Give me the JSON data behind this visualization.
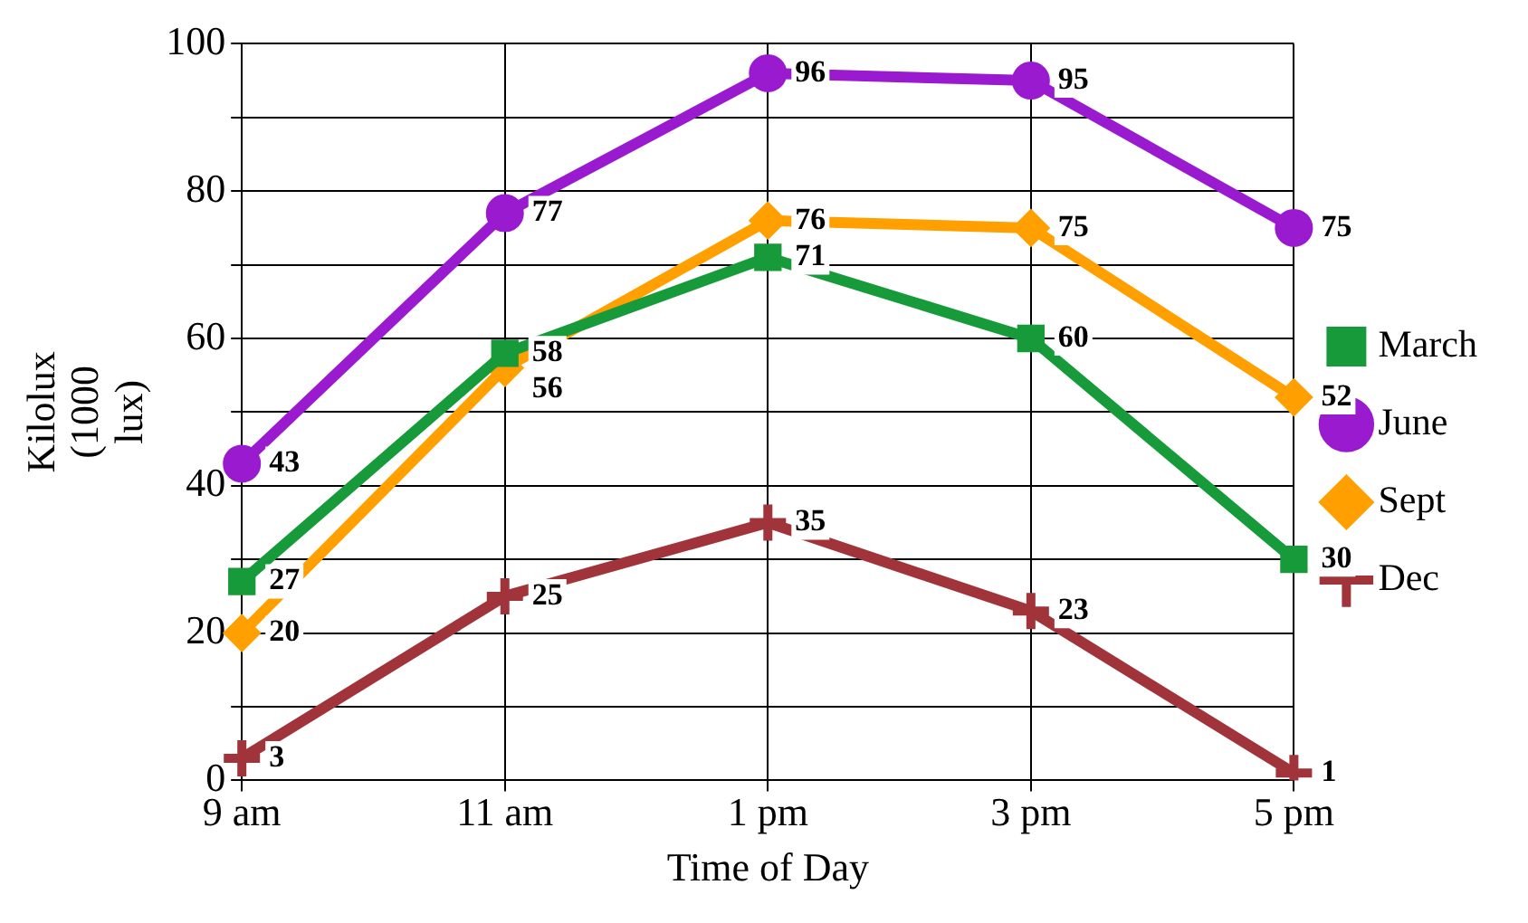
{
  "chart_data": {
    "type": "line",
    "xlabel": "Time of Day",
    "ylabel": "Kilolux (1000 lux)",
    "categories": [
      "9 am",
      "11 am",
      "1 pm",
      "3 pm",
      "5 pm"
    ],
    "series": [
      {
        "name": "March",
        "color": "#179a3a",
        "marker": "square",
        "values": [
          27,
          58,
          71,
          60,
          30
        ]
      },
      {
        "name": "June",
        "color": "#9a1ad0",
        "marker": "circle",
        "values": [
          43,
          77,
          96,
          95,
          75
        ]
      },
      {
        "name": "Sept",
        "color": "#ffa000",
        "marker": "diamond",
        "values": [
          20,
          56,
          76,
          75,
          52
        ]
      },
      {
        "name": "Dec",
        "color": "#a0343a",
        "marker": "cross",
        "values": [
          3,
          25,
          35,
          23,
          1
        ]
      }
    ],
    "ylim": [
      0,
      100
    ],
    "yticks": [
      0,
      {
        "value": 10,
        "label": null
      },
      20,
      {
        "value": 30,
        "label": null
      },
      40,
      {
        "value": 50,
        "label": null
      },
      60,
      {
        "value": 70,
        "label": null
      },
      80,
      {
        "value": 90,
        "label": null
      },
      100
    ],
    "grid": true,
    "legend": "right",
    "data_labels": true,
    "line_style": "solid"
  }
}
